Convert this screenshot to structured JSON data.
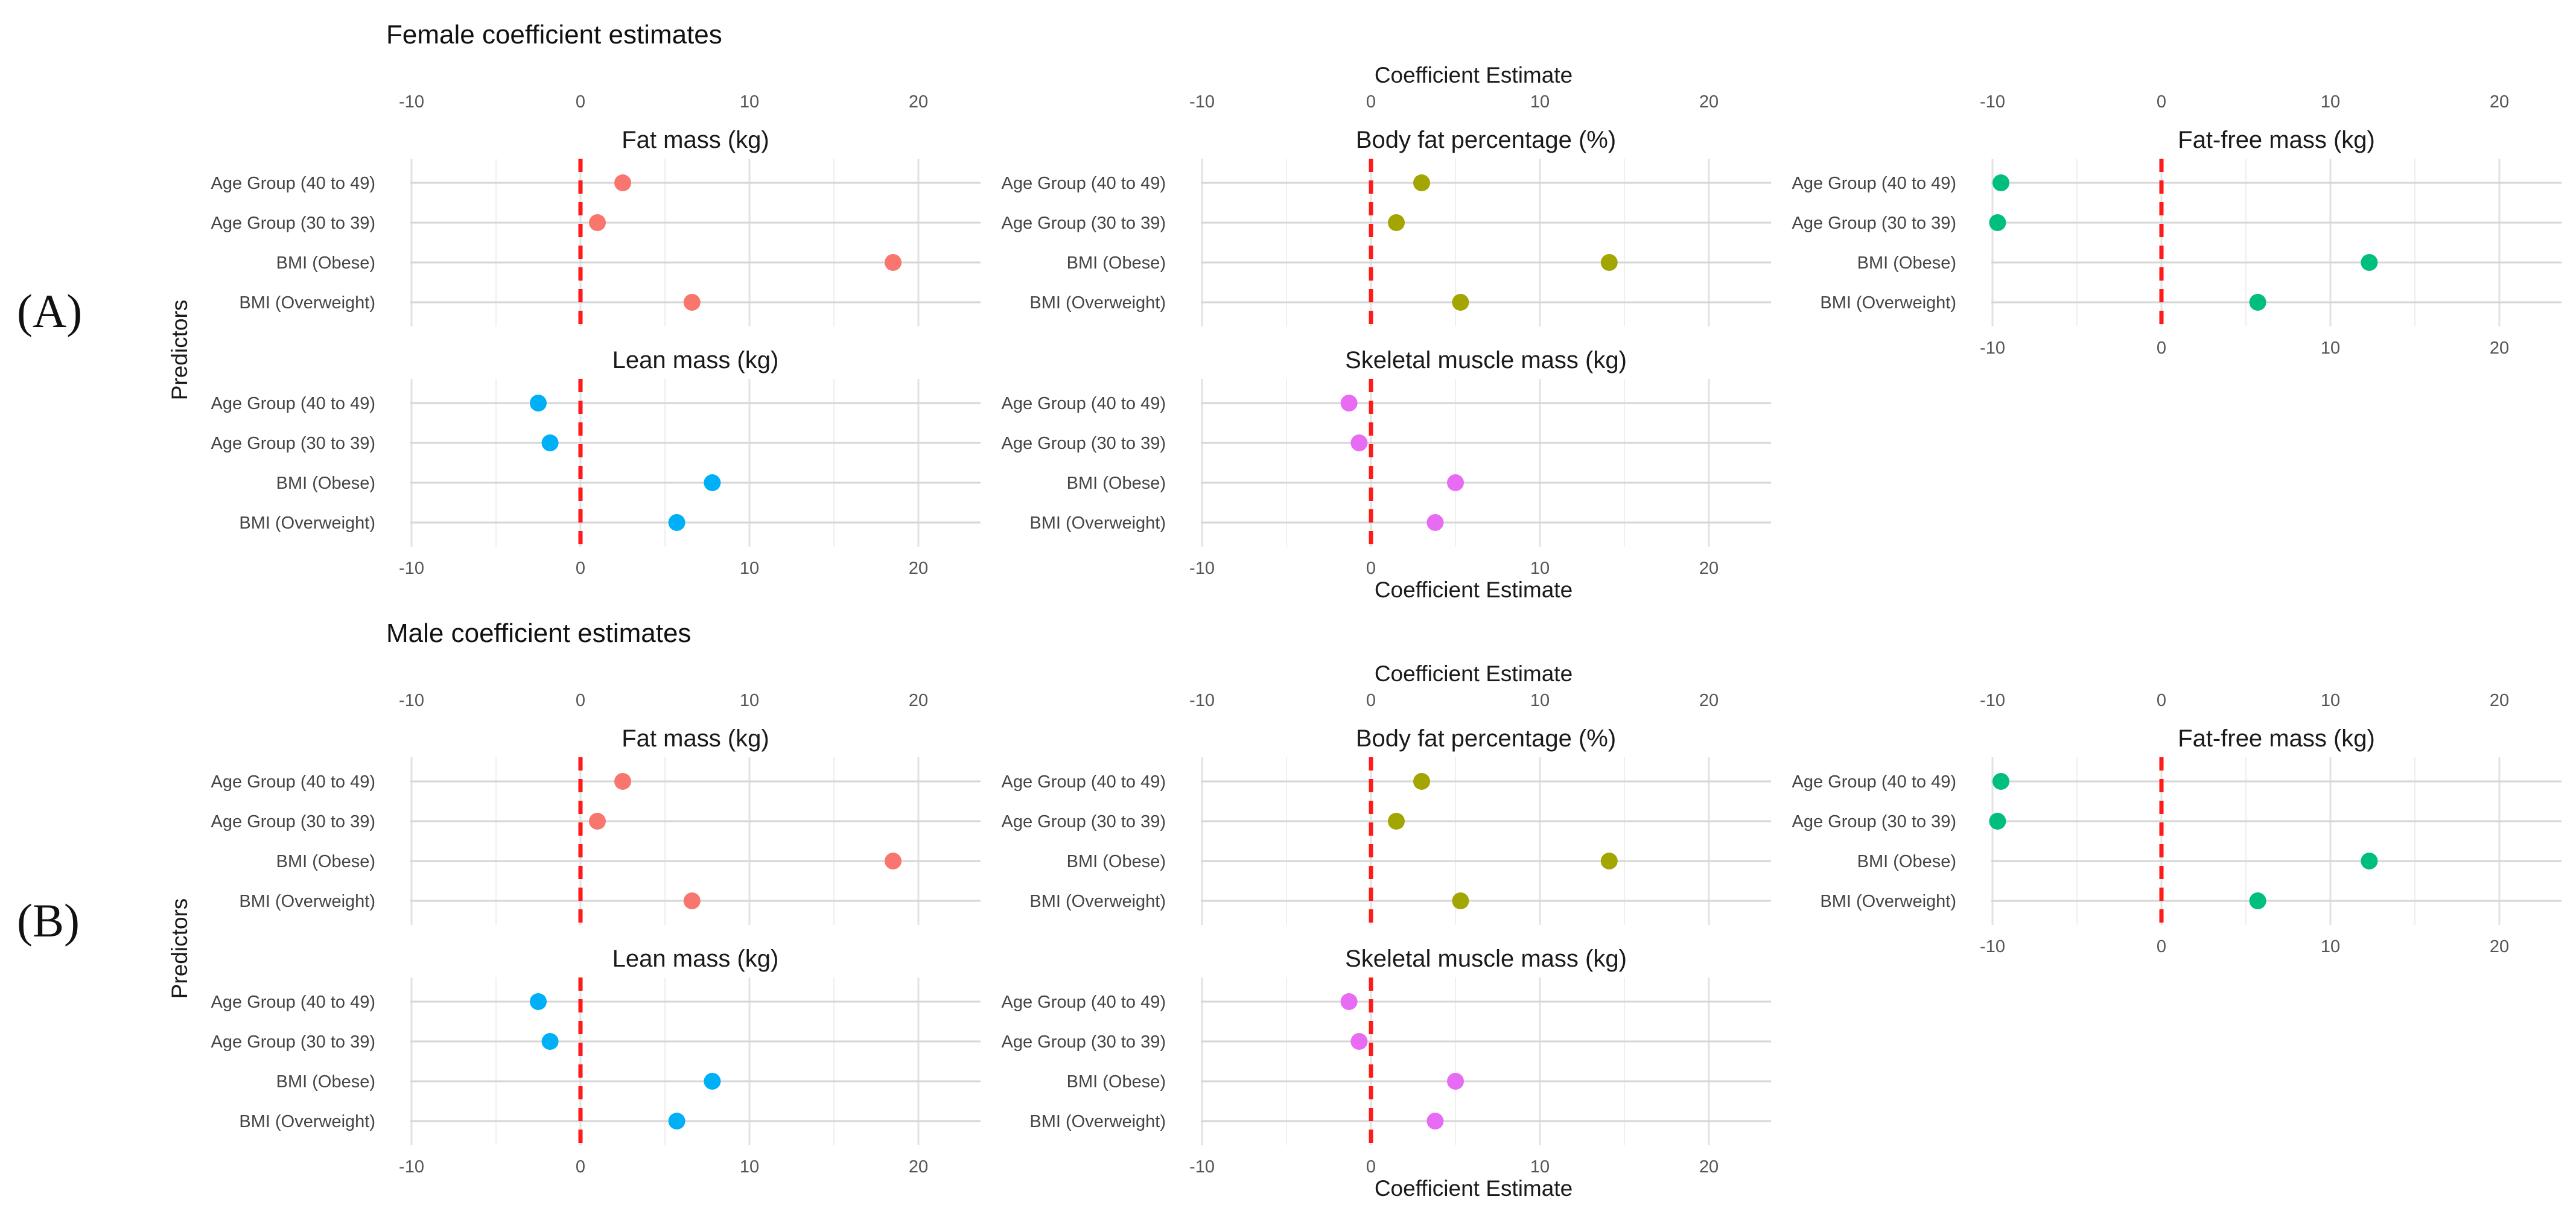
{
  "panel_labels": [
    "(A)",
    "(B)"
  ],
  "x_axis_label": "Coefficient Estimate",
  "y_axis_label": "Predictors",
  "chart_data": [
    {
      "type": "scatter",
      "group": "(A)",
      "title": "Female coefficient estimates",
      "xlabel": "Coefficient Estimate",
      "ylabel": "Predictors",
      "xlim": [
        -10,
        23
      ],
      "xticks": [
        -10,
        0,
        10,
        20
      ],
      "reference_line": 0,
      "categories": [
        "Age Group (40 to 49)",
        "Age Group (30 to 39)",
        "BMI (Obese)",
        "BMI (Overweight)"
      ],
      "facets": [
        {
          "name": "Fat mass (kg)",
          "color": "#F8766D",
          "values": [
            2.5,
            1.0,
            18.5,
            6.6
          ]
        },
        {
          "name": "Body fat percentage (%)",
          "color": "#A3A500",
          "values": [
            3.0,
            1.5,
            14.1,
            5.3
          ]
        },
        {
          "name": "Fat-free mass (kg)",
          "color": "#00BF7D",
          "values": [
            -9.5,
            -9.7,
            12.3,
            5.7
          ]
        },
        {
          "name": "Lean mass (kg)",
          "color": "#00B0F6",
          "values": [
            -2.5,
            -1.8,
            7.8,
            5.7
          ]
        },
        {
          "name": "Skeletal muscle mass (kg)",
          "color": "#E76BF3",
          "values": [
            -1.3,
            -0.7,
            5.0,
            3.8
          ]
        }
      ]
    },
    {
      "type": "scatter",
      "group": "(B)",
      "title": "Male coefficient estimates",
      "xlabel": "Coefficient Estimate",
      "ylabel": "Predictors",
      "xlim": [
        -10,
        23
      ],
      "xticks": [
        -10,
        0,
        10,
        20
      ],
      "reference_line": 0,
      "categories": [
        "Age Group (40 to 49)",
        "Age Group (30 to 39)",
        "BMI (Obese)",
        "BMI (Overweight)"
      ],
      "facets": [
        {
          "name": "Fat mass (kg)",
          "color": "#F8766D",
          "values": [
            2.5,
            1.0,
            18.5,
            6.6
          ]
        },
        {
          "name": "Body fat percentage (%)",
          "color": "#A3A500",
          "values": [
            3.0,
            1.5,
            14.1,
            5.3
          ]
        },
        {
          "name": "Fat-free mass (kg)",
          "color": "#00BF7D",
          "values": [
            -9.5,
            -9.7,
            12.3,
            5.7
          ]
        },
        {
          "name": "Lean mass (kg)",
          "color": "#00B0F6",
          "values": [
            -2.5,
            -1.8,
            7.8,
            5.7
          ]
        },
        {
          "name": "Skeletal muscle mass (kg)",
          "color": "#E76BF3",
          "values": [
            -1.3,
            -0.7,
            5.0,
            3.8
          ]
        }
      ]
    }
  ]
}
